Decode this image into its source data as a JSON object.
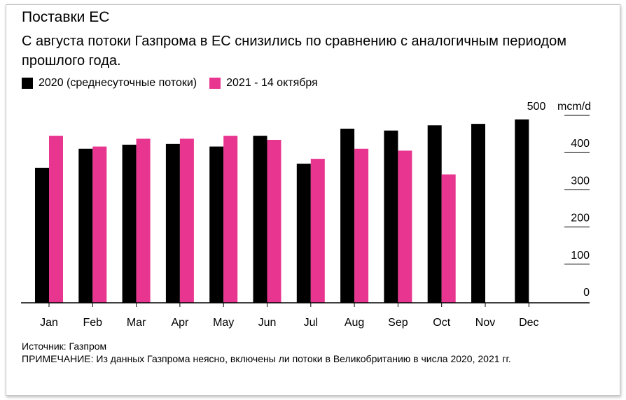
{
  "title": "Поставки ЕС",
  "subtitle": "С августа потоки Газпрома в ЕС снизились по сравнению с аналогичным периодом прошлого года.",
  "legend": [
    {
      "label": "2020 (среднесуточные потоки)",
      "color": "#000000"
    },
    {
      "label": "2021 - 14 октября",
      "color": "#e8358f"
    }
  ],
  "footer": {
    "source": "Источник: Газпром",
    "note": "ПРИМЕЧАНИЕ: Из данных Газпрома неясно, включены ли потоки в Великобританию в числа 2020, 2021 гг."
  },
  "chart_data": {
    "type": "bar",
    "categories": [
      "Jan",
      "Feb",
      "Mar",
      "Apr",
      "May",
      "Jun",
      "Jul",
      "Aug",
      "Sep",
      "Oct",
      "Nov",
      "Dec"
    ],
    "series": [
      {
        "name": "2020 (среднесуточные потоки)",
        "color": "#000000",
        "values": [
          363,
          414,
          425,
          427,
          420,
          449,
          374,
          468,
          463,
          477,
          481,
          493
        ]
      },
      {
        "name": "2021 - 14 октября",
        "color": "#e8358f",
        "values": [
          449,
          420,
          441,
          441,
          449,
          438,
          387,
          414,
          409,
          345,
          null,
          null
        ]
      }
    ],
    "ylabel": "mcm/d",
    "ylim": [
      0,
      500
    ],
    "yticks": [
      0,
      100,
      200,
      300,
      400,
      500
    ],
    "ytick_labels": [
      "0",
      "100",
      "200",
      "300",
      "400",
      "500"
    ],
    "grid": false,
    "legend_position": "top-left"
  }
}
